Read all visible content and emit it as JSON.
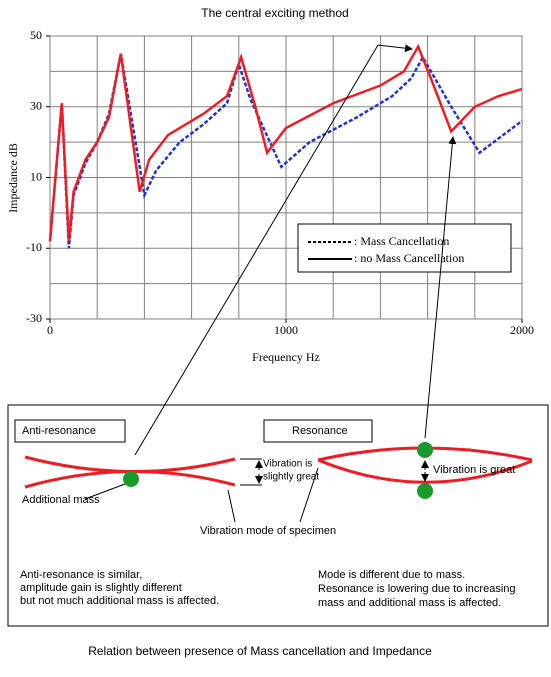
{
  "chart_data": {
    "type": "line",
    "title": "The central exciting method",
    "x_label": "Frequency  Hz",
    "y_label": "Impedance  dB",
    "xlim": [
      0,
      2000
    ],
    "xticks": [
      0,
      1000,
      2000
    ],
    "ylim": [
      -30,
      50
    ],
    "yticks": [
      -30,
      -10,
      10,
      30,
      50
    ],
    "grid": true,
    "xgrid": [
      0,
      200,
      400,
      600,
      800,
      1000,
      1200,
      1400,
      1600,
      1800,
      2000
    ],
    "ygrid": [
      -30,
      -20,
      -10,
      0,
      10,
      20,
      30,
      40,
      50
    ],
    "legend_line_color": "#000000",
    "series": [
      {
        "name": ": Mass Cancellation",
        "color": "#2233cc",
        "dashed": true,
        "x": [
          0,
          50,
          80,
          100,
          150,
          200,
          250,
          300,
          400,
          450,
          550,
          650,
          750,
          800,
          850,
          980,
          1100,
          1300,
          1450,
          1530,
          1580,
          1700,
          1820,
          1900,
          2000
        ],
        "values": [
          -8,
          31,
          -10,
          5,
          14,
          20,
          28,
          45,
          5,
          12,
          20,
          25,
          31,
          42,
          32,
          13,
          20,
          27,
          33,
          38,
          44,
          30,
          17,
          21,
          26
        ]
      },
      {
        "name": ": no Mass Cancellation",
        "color": "#ee1c24",
        "dashed": false,
        "x": [
          0,
          50,
          80,
          100,
          150,
          200,
          250,
          300,
          380,
          420,
          500,
          650,
          750,
          810,
          870,
          920,
          1000,
          1200,
          1400,
          1500,
          1560,
          1620,
          1700,
          1800,
          1900,
          2000
        ],
        "values": [
          -8,
          31,
          -8,
          6,
          15,
          20,
          27,
          45,
          6,
          15,
          22,
          28,
          33,
          44,
          30,
          17,
          24,
          31,
          36,
          40,
          47,
          37,
          23,
          30,
          33,
          35
        ]
      }
    ]
  },
  "diagram": {
    "anti_resonance": {
      "label": "Anti-resonance",
      "mass": "Additional mass",
      "vibration": [
        "Vibration is",
        "slightly great"
      ],
      "note": [
        "Anti-resonance is similar,",
        "amplitude gain is slightly different",
        "but not much additional mass is affected."
      ]
    },
    "resonance": {
      "label": "Resonance",
      "vibration": "Vibration is great",
      "note": [
        "Mode is different due to mass.",
        "Resonance is lowering due to increasing",
        "mass and additional mass is affected."
      ]
    },
    "mode_label": "Vibration mode of specimen",
    "caption": "Relation between presence of Mass cancellation and Impedance"
  }
}
